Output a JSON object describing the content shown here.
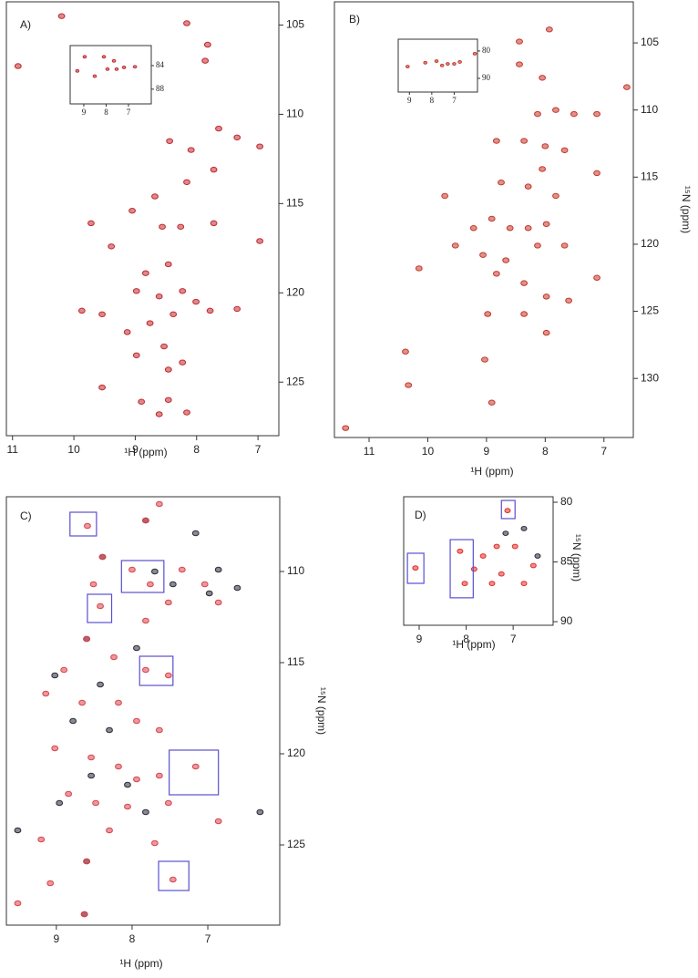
{
  "chart_data": [
    {
      "type": "scatter",
      "label": "A)",
      "x_label": "¹H (ppm)",
      "x_inverted": true,
      "y_inverted": true,
      "xlim": [
        6.66,
        11.1
      ],
      "ylim": [
        103.7,
        128.0
      ],
      "xticks": [
        11,
        10,
        9,
        8,
        7
      ],
      "yticks": [
        105,
        110,
        115,
        120,
        125
      ],
      "series": [
        {
          "color": "#c0282d",
          "x": [
            10.2,
            8.16,
            7.82,
            7.86,
            10.91,
            8.44,
            8.09,
            7.64,
            7.34,
            6.97,
            7.72,
            8.16,
            8.68,
            9.05,
            8.26,
            8.56,
            7.72,
            9.72,
            6.97,
            9.39,
            8.83,
            8.46,
            8.98,
            8.61,
            8.23,
            8.01,
            8.38,
            8.76,
            7.78,
            7.34,
            9.54,
            9.87,
            9.13,
            8.53,
            8.98,
            8.46,
            8.23,
            9.54,
            8.9,
            8.46,
            8.61,
            8.16
          ],
          "values": [
            104.5,
            104.9,
            106.1,
            107.0,
            107.3,
            111.5,
            112.0,
            110.8,
            111.3,
            111.8,
            113.1,
            113.8,
            114.6,
            115.4,
            116.3,
            116.3,
            116.1,
            116.1,
            117.1,
            117.4,
            118.9,
            118.4,
            119.9,
            120.2,
            119.9,
            120.5,
            121.2,
            121.7,
            121.0,
            120.9,
            121.2,
            121.0,
            122.2,
            123.0,
            123.5,
            124.3,
            123.9,
            125.3,
            126.1,
            126.0,
            126.8,
            126.7
          ]
        }
      ],
      "inset": {
        "x_inverted": true,
        "y_inverted": true,
        "xlim": [
          5.98,
          9.61
        ],
        "ylim": [
          80.6,
          90.5
        ],
        "xticks": [
          9,
          8,
          7
        ],
        "yticks": [
          84,
          88
        ],
        "series": [
          {
            "color": "#c0282d",
            "x": [
              9.29,
              8.51,
              7.94,
              7.65,
              7.53,
              7.2,
              6.71,
              8.96,
              8.1
            ],
            "values": [
              84.9,
              85.8,
              84.6,
              83.2,
              84.6,
              84.3,
              84.2,
              82.5,
              82.5
            ]
          }
        ]
      }
    },
    {
      "type": "scatter",
      "label": "B)",
      "x_label": "¹H (ppm)",
      "y_label": "¹⁵N (ppm)",
      "x_inverted": true,
      "y_inverted": true,
      "xlim": [
        6.5,
        11.59
      ],
      "ylim": [
        101.94,
        134.4
      ],
      "xticks": [
        11,
        10,
        9,
        8,
        7
      ],
      "yticks": [
        105,
        110,
        115,
        120,
        125,
        130
      ],
      "series": [
        {
          "color": "#c4362a",
          "x": [
            7.93,
            8.44,
            8.44,
            8.05,
            6.61,
            9.22,
            7.82,
            8.13,
            7.51,
            7.12,
            8.83,
            8.36,
            8.0,
            7.67,
            8.05,
            7.12,
            9.71,
            8.75,
            8.29,
            7.82,
            8.91,
            9.22,
            8.6,
            8.29,
            7.98,
            9.53,
            9.06,
            8.67,
            8.13,
            7.67,
            8.83,
            8.36,
            7.12,
            7.98,
            7.6,
            8.98,
            8.36,
            7.98,
            10.38,
            10.33,
            9.03,
            8.91,
            11.4,
            10.15
          ],
          "values": [
            104.0,
            104.9,
            106.6,
            107.6,
            108.3,
            105.9,
            110.0,
            110.3,
            110.3,
            110.3,
            112.3,
            112.3,
            112.7,
            113.0,
            114.4,
            114.7,
            116.4,
            115.4,
            115.7,
            116.4,
            118.1,
            118.8,
            118.8,
            118.8,
            118.5,
            120.1,
            120.8,
            121.2,
            120.1,
            120.1,
            122.2,
            122.9,
            122.5,
            123.9,
            124.2,
            125.2,
            125.2,
            126.6,
            128.0,
            130.5,
            128.6,
            131.8,
            133.7,
            121.8
          ]
        }
      ],
      "inset": {
        "x_inverted": true,
        "y_inverted": true,
        "xlim": [
          5.96,
          9.5
        ],
        "ylim": [
          75.7,
          95.0
        ],
        "xticks": [
          9,
          8,
          7
        ],
        "yticks": [
          80,
          90
        ],
        "series": [
          {
            "color": "#c4362a",
            "x": [
              9.08,
              8.29,
              7.79,
              7.54,
              7.29,
              7.0,
              6.75,
              6.08
            ],
            "values": [
              85.7,
              84.3,
              83.7,
              85.3,
              84.7,
              84.7,
              84.0,
              81.0
            ]
          }
        ]
      }
    },
    {
      "type": "scatter",
      "label": "C)",
      "x_label": "¹H (ppm)",
      "y_label": "¹⁵N (ppm)",
      "x_inverted": true,
      "y_inverted": true,
      "xlim": [
        6.05,
        9.66
      ],
      "ylim": [
        105.9,
        129.4
      ],
      "xticks": [
        9,
        8,
        7
      ],
      "yticks": [
        110,
        115,
        120,
        125
      ],
      "series": [
        {
          "color": "#2a2a3a",
          "x": [
            7.82,
            8.39,
            7.7,
            7.46,
            6.98,
            6.61,
            8.6,
            7.94,
            9.02,
            8.42,
            8.78,
            8.3,
            8.54,
            8.06,
            8.96,
            7.82,
            6.31,
            9.51,
            8.6,
            8.63,
            7.16,
            6.86
          ],
          "values": [
            107.2,
            109.2,
            110.0,
            110.7,
            111.2,
            110.9,
            113.7,
            114.2,
            115.7,
            116.2,
            118.2,
            118.7,
            121.2,
            121.7,
            122.7,
            123.2,
            123.2,
            124.2,
            125.9,
            128.8,
            107.9,
            109.9
          ]
        },
        {
          "color": "#d9434b",
          "x": [
            8.59,
            7.82,
            7.64,
            8.39,
            8.51,
            8.0,
            7.76,
            7.34,
            7.04,
            6.86,
            7.52,
            7.82,
            8.42,
            8.6,
            8.24,
            8.9,
            7.82,
            7.52,
            9.14,
            8.66,
            8.18,
            7.94,
            7.64,
            9.02,
            8.54,
            8.18,
            7.94,
            7.64,
            7.16,
            8.84,
            8.48,
            8.06,
            7.52,
            6.86,
            9.2,
            8.3,
            7.7,
            8.6,
            9.08,
            7.46,
            9.51,
            8.63
          ],
          "values": [
            107.5,
            107.2,
            106.3,
            109.2,
            110.7,
            109.9,
            110.7,
            109.9,
            110.7,
            111.7,
            111.7,
            112.7,
            111.9,
            113.7,
            114.7,
            115.4,
            115.4,
            115.7,
            116.7,
            117.2,
            117.2,
            118.2,
            118.7,
            119.7,
            120.2,
            120.7,
            121.4,
            121.2,
            120.7,
            122.2,
            122.7,
            122.9,
            122.7,
            123.7,
            124.7,
            124.2,
            124.9,
            125.9,
            127.1,
            126.9,
            128.2,
            128.8
          ]
        }
      ],
      "box_color": "#5a4fd0",
      "highlight_boxes": [
        {
          "x": [
            8.47,
            8.82
          ],
          "y": [
            106.75,
            108.05
          ]
        },
        {
          "x": [
            7.58,
            8.14
          ],
          "y": [
            109.4,
            111.15
          ]
        },
        {
          "x": [
            8.27,
            8.59
          ],
          "y": [
            111.25,
            112.8
          ]
        },
        {
          "x": [
            7.46,
            7.9
          ],
          "y": [
            114.65,
            116.25
          ]
        },
        {
          "x": [
            6.86,
            7.51
          ],
          "y": [
            119.8,
            122.25
          ]
        },
        {
          "x": [
            7.25,
            7.65
          ],
          "y": [
            125.9,
            127.5
          ]
        }
      ]
    },
    {
      "type": "scatter",
      "label": "D)",
      "x_label": "¹H (ppm)",
      "y_label": "¹⁵N (ppm)",
      "x_inverted": true,
      "y_inverted": true,
      "xlim": [
        6.15,
        9.33
      ],
      "ylim": [
        79.54,
        90.3
      ],
      "xticks": [
        9,
        8,
        7
      ],
      "yticks": [
        80,
        85,
        90
      ],
      "series": [
        {
          "color": "#2a2a3a",
          "x": [
            6.77,
            6.48,
            7.16
          ],
          "values": [
            82.2,
            84.5,
            82.6
          ]
        },
        {
          "color": "#e0302a",
          "x": [
            9.08,
            7.12,
            8.13,
            8.03,
            7.64,
            7.35,
            7.25,
            6.96,
            6.77,
            6.57,
            7.83,
            7.45
          ],
          "values": [
            85.5,
            80.7,
            84.1,
            86.8,
            84.5,
            83.7,
            86.0,
            83.7,
            86.8,
            85.3,
            85.6,
            86.8
          ]
        }
      ],
      "box_color": "#5a4fd0",
      "highlight_boxes": [
        {
          "x": [
            8.9,
            9.25
          ],
          "y": [
            84.27,
            86.79
          ]
        },
        {
          "x": [
            7.85,
            8.34
          ],
          "y": [
            83.13,
            88.0
          ]
        },
        {
          "x": [
            6.96,
            7.25
          ],
          "y": [
            79.85,
            81.37
          ]
        }
      ]
    }
  ]
}
